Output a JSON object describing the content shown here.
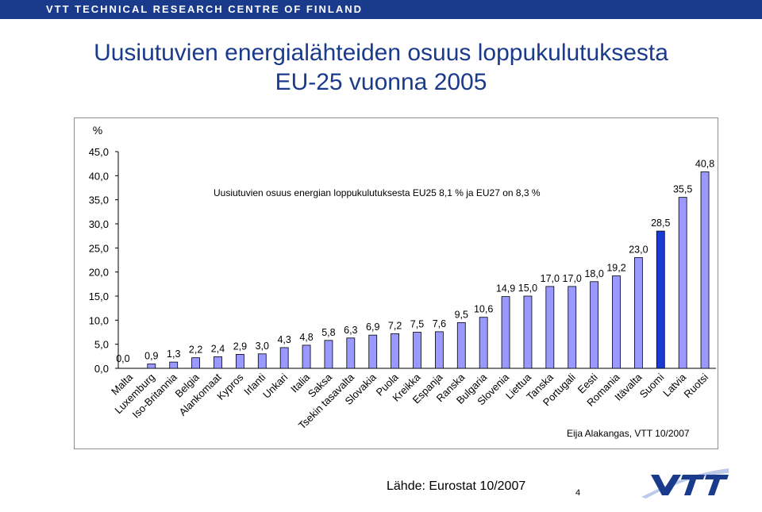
{
  "header": {
    "org": "VTT TECHNICAL RESEARCH CENTRE OF FINLAND"
  },
  "title": {
    "line1": "Uusiutuvien energialähteiden osuus loppukulutuksesta",
    "line2": "EU-25 vuonna 2005"
  },
  "footer": {
    "source": "Lähde: Eurostat 10/2007",
    "page": "4"
  },
  "logo": {
    "text": "VTT"
  },
  "colors": {
    "header": "#1a3a8c",
    "title": "#1a3a8c",
    "bar": "#9999ff",
    "highlight": "#1a3ad4",
    "bar_stroke": "#000000"
  },
  "chart_data": {
    "type": "bar",
    "ylabel": "%",
    "ylim": [
      0,
      45
    ],
    "yticks": [
      "0,0",
      "5,0",
      "10,0",
      "15,0",
      "20,0",
      "25,0",
      "30,0",
      "35,0",
      "40,0",
      "45,0"
    ],
    "annotation": "Uusiutuvien osuus energian loppukulutuksesta EU25 8,1 % ja EU27 on 8,3 %",
    "credit": "Eija Alakangas, VTT 10/2007",
    "highlight_index": 24,
    "grid": false,
    "categories": [
      "Malta",
      "Luxemburg",
      "Iso-Britannia",
      "Belgia",
      "Alankomaat",
      "Kypros",
      "Irlanti",
      "Unkari",
      "Italia",
      "Saksa",
      "Tsekin tasavalta",
      "Slovakia",
      "Puola",
      "Kreikka",
      "Espanja",
      "Ranska",
      "Bulgaria",
      "Slovenia",
      "Liettua",
      "Tanska",
      "Portugali",
      "Eesti",
      "Romania",
      "Itävalta",
      "Suomi",
      "Latvia",
      "Ruotsi"
    ],
    "values": [
      0.0,
      0.9,
      1.3,
      2.2,
      2.4,
      2.9,
      3.0,
      4.3,
      4.8,
      5.8,
      6.3,
      6.9,
      7.2,
      7.5,
      7.6,
      9.5,
      10.6,
      14.9,
      15.0,
      17.0,
      17.0,
      18.0,
      19.2,
      23.0,
      28.5,
      35.5,
      40.8
    ],
    "value_labels": [
      "0,0",
      "0,9",
      "1,3",
      "2,2",
      "2,4",
      "2,9",
      "3,0",
      "4,3",
      "4,8",
      "5,8",
      "6,3",
      "6,9",
      "7,2",
      "7,5",
      "7,6",
      "9,5",
      "10,6",
      "14,9",
      "15,0",
      "17,0",
      "17,0",
      "18,0",
      "19,2",
      "23,0",
      "28,5",
      "35,5",
      "40,8"
    ]
  }
}
